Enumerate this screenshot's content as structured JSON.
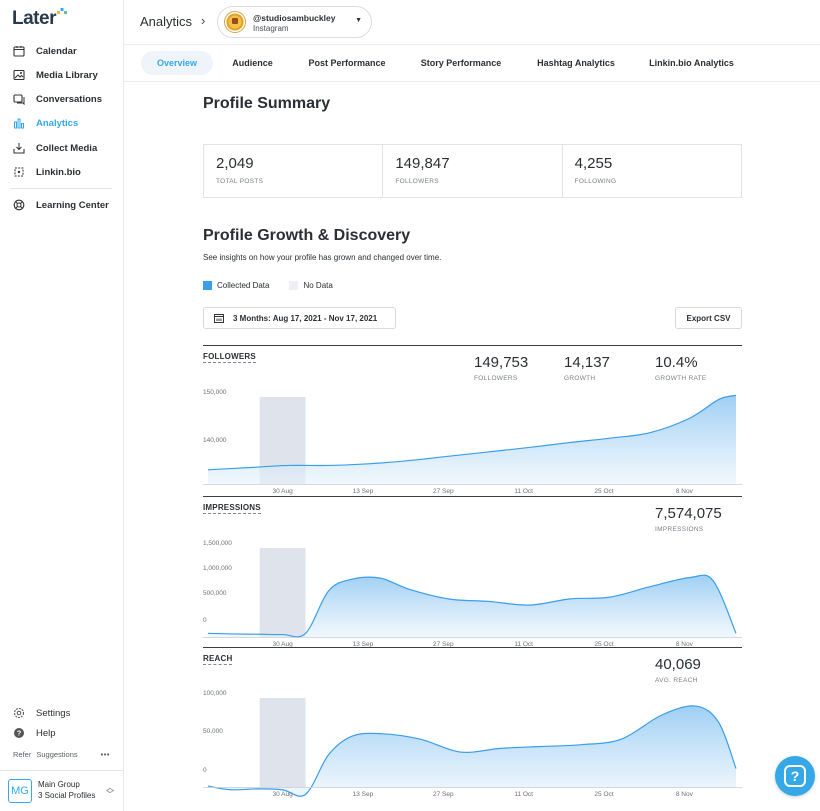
{
  "sidebar": {
    "logo": "Later",
    "items": [
      {
        "label": "Calendar",
        "icon": "calendar-icon"
      },
      {
        "label": "Media Library",
        "icon": "image-icon"
      },
      {
        "label": "Conversations",
        "icon": "chat-icon"
      },
      {
        "label": "Analytics",
        "icon": "bar-chart-icon",
        "active": true
      },
      {
        "label": "Collect Media",
        "icon": "inbox-download-icon"
      },
      {
        "label": "Linkin.bio",
        "icon": "link-grid-icon"
      },
      {
        "label": "Learning Center",
        "icon": "lifebuoy-icon"
      }
    ],
    "settings": "Settings",
    "help": "Help",
    "refer": "Refer",
    "suggestions": "Suggestions",
    "more": "•••",
    "group": {
      "initials": "MG",
      "name": "Main Group",
      "sub": "3 Social Profiles"
    }
  },
  "header": {
    "title": "Analytics",
    "profile": {
      "handle": "@studiosambuckley",
      "network": "Instagram"
    }
  },
  "tabs": [
    "Overview",
    "Audience",
    "Post Performance",
    "Story Performance",
    "Hashtag Analytics",
    "Linkin.bio Analytics"
  ],
  "summary": {
    "title": "Profile Summary",
    "cells": [
      {
        "value": "2,049",
        "label": "TOTAL POSTS"
      },
      {
        "value": "149,847",
        "label": "FOLLOWERS"
      },
      {
        "value": "4,255",
        "label": "FOLLOWING"
      }
    ]
  },
  "growth": {
    "title": "Profile Growth & Discovery",
    "description": "See insights on how your profile has grown and changed over time.",
    "legend": [
      {
        "label": "Collected Data",
        "color": "#3a9ee8"
      },
      {
        "label": "No Data",
        "color": "#eef0f3"
      }
    ],
    "date_range": "3 Months: Aug 17, 2021 - Nov 17, 2021",
    "export": "Export CSV"
  },
  "metrics": {
    "followers": {
      "title": "FOLLOWERS",
      "stats": [
        {
          "value": "149,753",
          "label": "FOLLOWERS"
        },
        {
          "value": "14,137",
          "label": "GROWTH"
        },
        {
          "value": "10.4%",
          "label": "GROWTH RATE"
        }
      ]
    },
    "impressions": {
      "title": "IMPRESSIONS",
      "stats": [
        {
          "value": "7,574,075",
          "label": "IMPRESSIONS"
        }
      ]
    },
    "reach": {
      "title": "REACH",
      "stats": [
        {
          "value": "40,069",
          "label": "AVG. REACH"
        }
      ]
    }
  },
  "chart_data": [
    {
      "type": "area",
      "name": "FOLLOWERS",
      "x_ticks": [
        "30 Aug",
        "13 Sep",
        "27 Sep",
        "11 Oct",
        "25 Oct",
        "8 Nov"
      ],
      "y_ticks": [
        "150,000",
        "140,000"
      ],
      "ylim": [
        133500,
        150000
      ],
      "x": [
        "Aug 17",
        "Aug 24",
        "Aug 31",
        "Sep 7",
        "Sep 14",
        "Sep 21",
        "Sep 28",
        "Oct 5",
        "Oct 12",
        "Oct 19",
        "Oct 26",
        "Nov 2",
        "Nov 9",
        "Nov 14",
        "Nov 17"
      ],
      "values": [
        136100,
        136500,
        136900,
        136900,
        137200,
        137800,
        138600,
        139400,
        140200,
        141100,
        141900,
        142900,
        145600,
        149000,
        149753
      ],
      "no_data_range": [
        "Aug 26",
        "Sep 3"
      ]
    },
    {
      "type": "area",
      "name": "IMPRESSIONS",
      "x_ticks": [
        "30 Aug",
        "13 Sep",
        "27 Sep",
        "11 Oct",
        "25 Oct",
        "8 Nov"
      ],
      "y_ticks": [
        "1,500,000",
        "1,000,000",
        "500,000",
        "0"
      ],
      "ylim": [
        0,
        1500000
      ],
      "x": [
        "Aug 17",
        "Aug 21",
        "Aug 26",
        "Aug 30",
        "Sep 3",
        "Sep 7",
        "Sep 11",
        "Sep 16",
        "Sep 21",
        "Sep 28",
        "Oct 5",
        "Oct 12",
        "Oct 19",
        "Oct 26",
        "Nov 2",
        "Nov 9",
        "Nov 13",
        "Nov 17"
      ],
      "values": [
        60000,
        50000,
        45000,
        40000,
        60000,
        750000,
        940000,
        960000,
        780000,
        620000,
        580000,
        520000,
        620000,
        650000,
        820000,
        970000,
        920000,
        60000
      ],
      "no_data_range": [
        "Aug 26",
        "Sep 3"
      ]
    },
    {
      "type": "area",
      "name": "REACH",
      "x_ticks": [
        "30 Aug",
        "13 Sep",
        "27 Sep",
        "11 Oct",
        "25 Oct",
        "8 Nov"
      ],
      "y_ticks": [
        "100,000",
        "50,000",
        "0"
      ],
      "ylim": [
        0,
        100000
      ],
      "x": [
        "Aug 17",
        "Aug 21",
        "Aug 26",
        "Aug 30",
        "Sep 3",
        "Sep 7",
        "Sep 11",
        "Sep 16",
        "Sep 23",
        "Sep 30",
        "Oct 7",
        "Oct 14",
        "Oct 21",
        "Oct 28",
        "Nov 4",
        "Nov 10",
        "Nov 14",
        "Nov 17"
      ],
      "values": [
        1000,
        -3000,
        -2000,
        -3000,
        -8000,
        35000,
        55000,
        58000,
        52000,
        38000,
        42000,
        44000,
        46000,
        52000,
        78000,
        88000,
        70000,
        20000
      ],
      "no_data_range": [
        "Aug 26",
        "Sep 3"
      ]
    }
  ]
}
